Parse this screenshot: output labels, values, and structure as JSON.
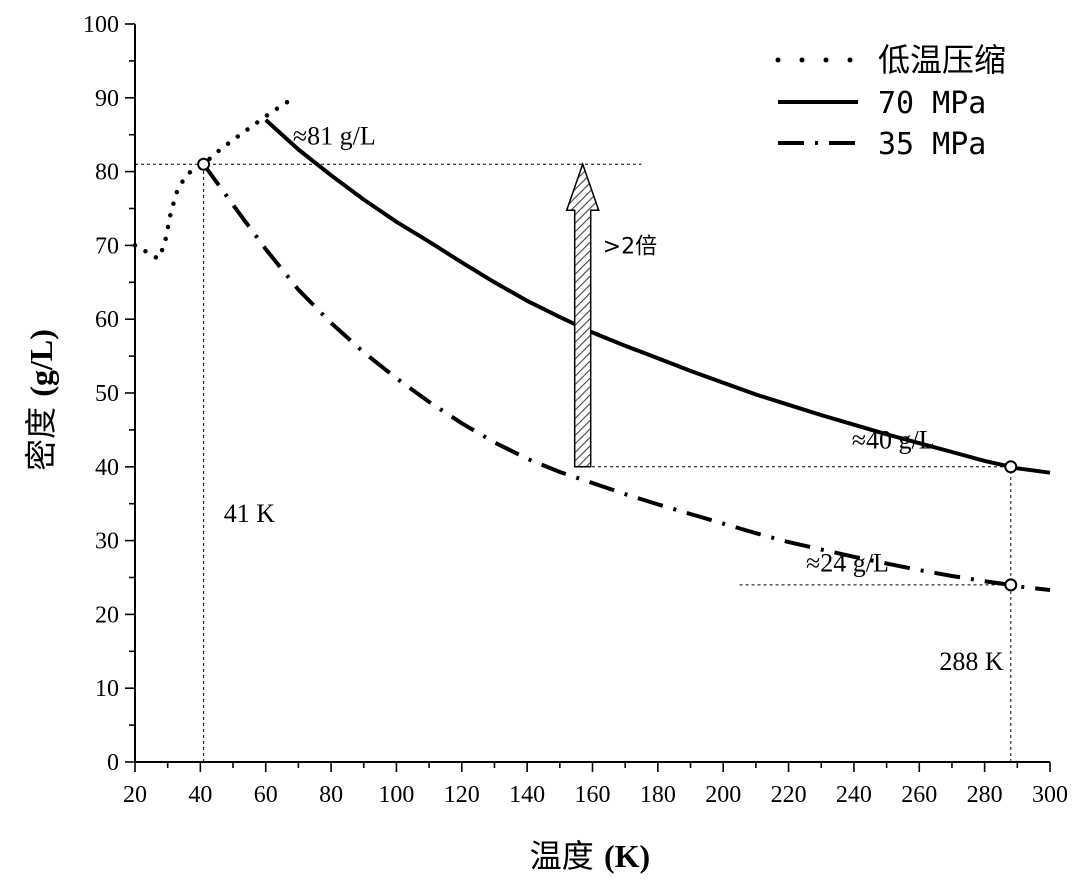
{
  "chart_data": {
    "type": "line",
    "title": "",
    "xlabel": "温度 (K)",
    "ylabel": "密度 (g/L)",
    "xlim": [
      20,
      300
    ],
    "ylim": [
      0,
      100
    ],
    "x_ticks": [
      20,
      40,
      60,
      80,
      100,
      120,
      140,
      160,
      180,
      200,
      220,
      240,
      260,
      280,
      300
    ],
    "y_ticks": [
      0,
      10,
      20,
      30,
      40,
      50,
      60,
      70,
      80,
      90,
      100
    ],
    "grid": false,
    "legend_position": "top-right",
    "series": [
      {
        "name": "低温压缩",
        "style": "dotted",
        "x": [
          20,
          24,
          27,
          29,
          31,
          33,
          35,
          37,
          39,
          41,
          45,
          50,
          55,
          60,
          65,
          68
        ],
        "y": [
          70,
          69,
          68.2,
          70,
          74.5,
          77.5,
          79,
          80,
          80.6,
          81,
          82.6,
          84.3,
          85.9,
          87.5,
          89,
          89.8
        ]
      },
      {
        "name": "70 MPa",
        "style": "solid",
        "x": [
          60,
          70,
          80,
          90,
          100,
          110,
          120,
          130,
          140,
          150,
          160,
          170,
          180,
          190,
          200,
          210,
          220,
          230,
          240,
          250,
          260,
          270,
          280,
          288,
          290,
          300
        ],
        "y": [
          87,
          83,
          79.5,
          76.2,
          73.2,
          70.5,
          67.7,
          65,
          62.5,
          60.3,
          58.2,
          56.4,
          54.7,
          53,
          51.4,
          49.8,
          48.4,
          47,
          45.7,
          44.4,
          43.2,
          42,
          40.8,
          40,
          39.8,
          39.2
        ]
      },
      {
        "name": "35 MPa",
        "style": "dashdot",
        "x": [
          41,
          50,
          60,
          70,
          80,
          90,
          100,
          110,
          120,
          130,
          140,
          150,
          160,
          170,
          180,
          190,
          200,
          210,
          220,
          230,
          240,
          250,
          260,
          270,
          280,
          288,
          290,
          300
        ],
        "y": [
          81,
          75.5,
          69.5,
          64,
          59.5,
          55.5,
          52,
          48.8,
          45.9,
          43.3,
          41.1,
          39.3,
          37.8,
          36.3,
          34.9,
          33.6,
          32.3,
          31,
          29.8,
          28.8,
          27.8,
          26.9,
          26,
          25.2,
          24.5,
          24,
          23.8,
          23.3
        ]
      }
    ],
    "markers": [
      {
        "x": 41,
        "y": 81
      },
      {
        "x": 288,
        "y": 40
      },
      {
        "x": 288,
        "y": 24
      }
    ],
    "guides": [
      {
        "from": [
          20,
          81
        ],
        "to": [
          175,
          81
        ]
      },
      {
        "from": [
          41,
          0
        ],
        "to": [
          41,
          81
        ]
      },
      {
        "from": [
          158,
          40
        ],
        "to": [
          288,
          40
        ]
      },
      {
        "from": [
          205,
          24
        ],
        "to": [
          288,
          24
        ]
      },
      {
        "from": [
          288,
          0
        ],
        "to": [
          288,
          40
        ]
      }
    ],
    "arrow": {
      "x": 157,
      "y_from": 40,
      "y_to": 81,
      "label": ">2倍"
    },
    "annotations": [
      {
        "text": "≈81 g/L",
        "x": 81,
        "y": 83.7
      },
      {
        "text": "≈40 g/L",
        "x": 252,
        "y": 42.5
      },
      {
        "text": "≈24 g/L",
        "x": 238,
        "y": 25.8
      },
      {
        "text": "41 K",
        "x": 55,
        "y": 32.5
      },
      {
        "text": "288 K",
        "x": 276,
        "y": 12.5
      }
    ]
  }
}
